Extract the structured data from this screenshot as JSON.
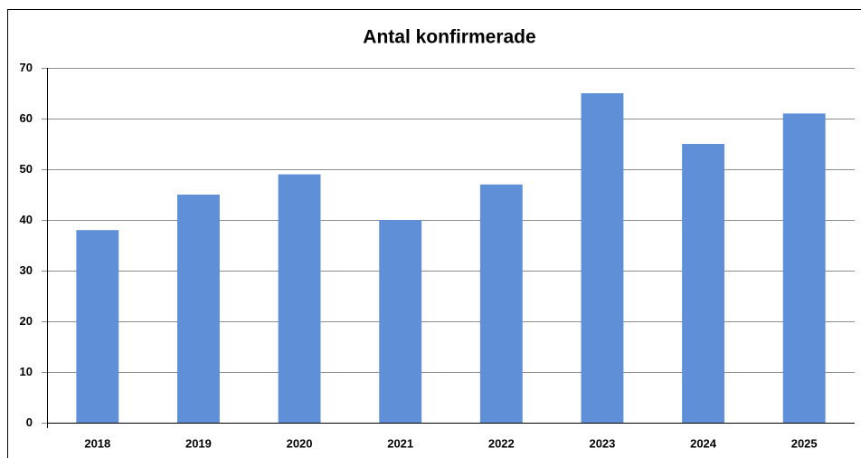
{
  "chart_data": {
    "type": "bar",
    "title": "Antal konfirmerade",
    "categories": [
      "2018",
      "2019",
      "2020",
      "2021",
      "2022",
      "2023",
      "2024",
      "2025"
    ],
    "values": [
      38,
      45,
      49,
      40,
      47,
      65,
      55,
      61
    ],
    "color": "#5f8fd7",
    "ylim": [
      0,
      70
    ],
    "yticks": [
      0,
      10,
      20,
      30,
      40,
      50,
      60,
      70
    ],
    "grid": true
  }
}
